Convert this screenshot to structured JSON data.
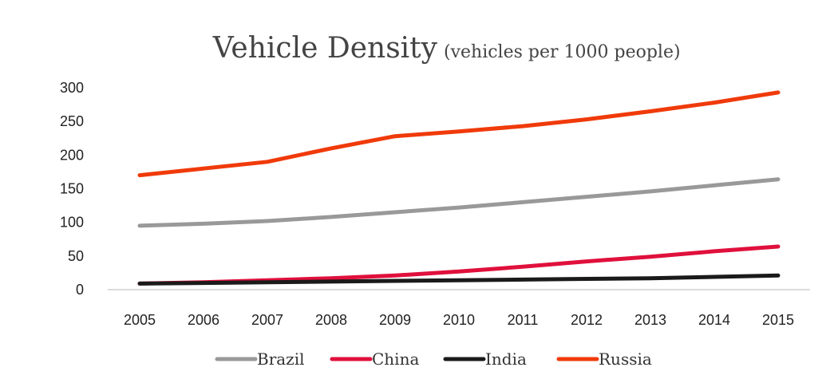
{
  "chart_data": {
    "type": "line",
    "title": "Vehicle Density",
    "subtitle": "(vehicles per 1000 people)",
    "xlabel": "",
    "ylabel": "",
    "x": [
      "2005",
      "2006",
      "2007",
      "2008",
      "2009",
      "2010",
      "2011",
      "2012",
      "2013",
      "2014",
      "2015"
    ],
    "ylim": [
      0,
      300
    ],
    "yticks": [
      0,
      50,
      100,
      150,
      200,
      250,
      300
    ],
    "grid": false,
    "legend_position": "bottom",
    "series": [
      {
        "name": "Brazil",
        "color": "#999999",
        "values": [
          95,
          98,
          102,
          108,
          115,
          122,
          130,
          138,
          146,
          155,
          164
        ]
      },
      {
        "name": "China",
        "color": "#e0103c",
        "values": [
          9,
          11,
          14,
          17,
          21,
          27,
          34,
          42,
          49,
          57,
          64
        ]
      },
      {
        "name": "India",
        "color": "#1a1a1a",
        "values": [
          9,
          10,
          11,
          12,
          13,
          14,
          15,
          16,
          17,
          19,
          21
        ]
      },
      {
        "name": "Russia",
        "color": "#f03a0a",
        "values": [
          170,
          180,
          190,
          210,
          228,
          235,
          243,
          253,
          265,
          278,
          293
        ]
      }
    ]
  }
}
